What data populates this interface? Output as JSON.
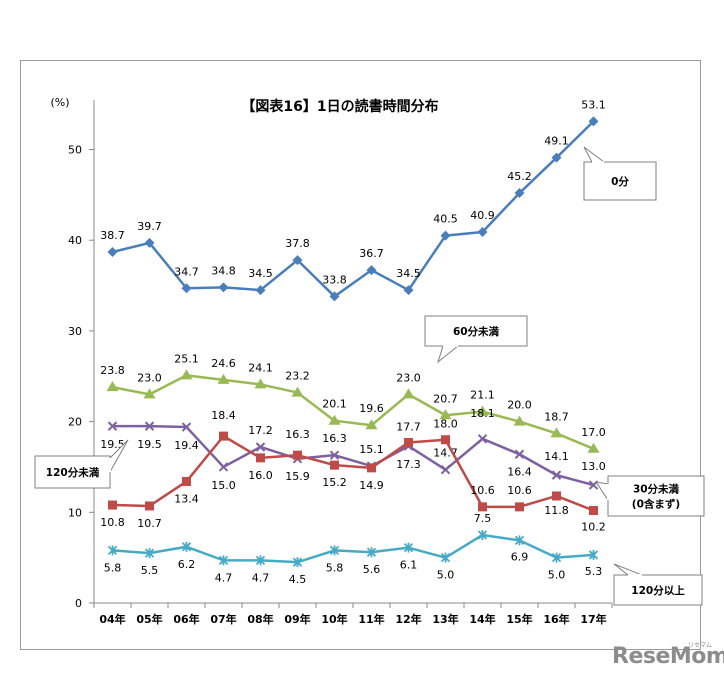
{
  "chart_data": {
    "type": "line",
    "title": "【図表16】1日の読書時間分布",
    "ylabel": "(%)",
    "xlabel": "",
    "ylim": [
      0,
      55
    ],
    "yticks": [
      0,
      10,
      20,
      30,
      40,
      50
    ],
    "categories": [
      "04年",
      "05年",
      "06年",
      "07年",
      "08年",
      "09年",
      "10年",
      "11年",
      "12年",
      "13年",
      "14年",
      "15年",
      "16年",
      "17年"
    ],
    "series": [
      {
        "name": "0分",
        "color": "#4a7ebb",
        "marker": "diamond",
        "values": [
          38.7,
          39.7,
          34.7,
          34.8,
          34.5,
          37.8,
          33.8,
          36.7,
          34.5,
          40.5,
          40.9,
          45.2,
          49.1,
          53.1
        ]
      },
      {
        "name": "60分未満",
        "color": "#98b954",
        "marker": "triangle",
        "values": [
          23.8,
          23.0,
          25.1,
          24.6,
          24.1,
          23.2,
          20.1,
          19.6,
          23.0,
          20.7,
          21.1,
          20.0,
          18.7,
          17.0
        ]
      },
      {
        "name": "120分未満",
        "color": "#7d60a0",
        "marker": "x",
        "values": [
          19.5,
          19.5,
          19.4,
          15.0,
          17.2,
          15.9,
          16.3,
          15.1,
          17.3,
          14.7,
          18.1,
          16.4,
          14.1,
          13.0
        ]
      },
      {
        "name": "30分未満（0含まず）",
        "color": "#be4b48",
        "marker": "square",
        "values": [
          10.8,
          10.7,
          13.4,
          18.4,
          16.0,
          16.3,
          15.2,
          14.9,
          17.7,
          18.0,
          10.6,
          10.6,
          11.8,
          10.2
        ]
      },
      {
        "name": "120分以上",
        "color": "#46aac5",
        "marker": "asterisk",
        "values": [
          5.8,
          5.5,
          6.2,
          4.7,
          4.7,
          4.5,
          5.8,
          5.6,
          6.1,
          5.0,
          7.5,
          6.9,
          5.0,
          5.3
        ]
      }
    ],
    "callouts": [
      {
        "label": "0分"
      },
      {
        "label": "60分未満"
      },
      {
        "label": "120分未満"
      },
      {
        "label_lines": [
          "30分未満",
          "(0含まず)"
        ]
      },
      {
        "label": "120分以上"
      }
    ],
    "legend": "callouts",
    "grid": false
  },
  "watermark": {
    "text": "ReseMom",
    "sub": "リセマム"
  }
}
